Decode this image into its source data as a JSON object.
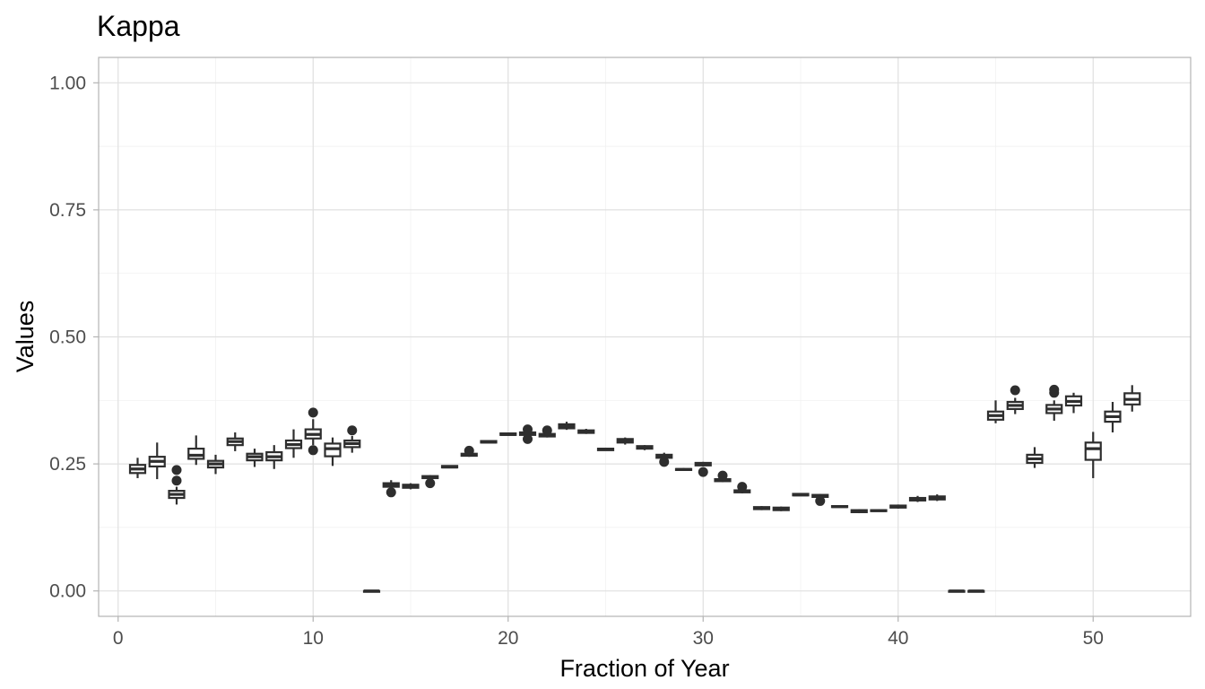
{
  "chart_data": {
    "type": "boxplot",
    "title": "Kappa",
    "xlabel": "Fraction of Year",
    "ylabel": "Values",
    "xlim": [
      -1,
      55
    ],
    "ylim": [
      -0.05,
      1.05
    ],
    "x_ticks": [
      0,
      10,
      20,
      30,
      40,
      50
    ],
    "x_tick_labels": [
      "0",
      "10",
      "20",
      "30",
      "40",
      "50"
    ],
    "y_ticks": [
      0,
      0.25,
      0.5,
      0.75,
      1.0
    ],
    "y_tick_labels": [
      "0.00",
      "0.25",
      "0.50",
      "0.75",
      "1.00"
    ],
    "grid": true,
    "boxes": [
      {
        "x": 1,
        "lo": 0.222,
        "q1": 0.232,
        "med": 0.24,
        "q3": 0.248,
        "hi": 0.262,
        "outliers": []
      },
      {
        "x": 2,
        "lo": 0.22,
        "q1": 0.245,
        "med": 0.255,
        "q3": 0.264,
        "hi": 0.292,
        "outliers": []
      },
      {
        "x": 3,
        "lo": 0.17,
        "q1": 0.183,
        "med": 0.19,
        "q3": 0.197,
        "hi": 0.205,
        "outliers": [
          0.217,
          0.238
        ]
      },
      {
        "x": 4,
        "lo": 0.248,
        "q1": 0.26,
        "med": 0.267,
        "q3": 0.28,
        "hi": 0.306,
        "outliers": []
      },
      {
        "x": 5,
        "lo": 0.23,
        "q1": 0.243,
        "med": 0.25,
        "q3": 0.256,
        "hi": 0.268,
        "outliers": []
      },
      {
        "x": 6,
        "lo": 0.275,
        "q1": 0.287,
        "med": 0.294,
        "q3": 0.3,
        "hi": 0.312,
        "outliers": []
      },
      {
        "x": 7,
        "lo": 0.244,
        "q1": 0.257,
        "med": 0.264,
        "q3": 0.27,
        "hi": 0.28,
        "outliers": []
      },
      {
        "x": 8,
        "lo": 0.24,
        "q1": 0.257,
        "med": 0.264,
        "q3": 0.273,
        "hi": 0.287,
        "outliers": []
      },
      {
        "x": 9,
        "lo": 0.262,
        "q1": 0.281,
        "med": 0.288,
        "q3": 0.296,
        "hi": 0.318,
        "outliers": []
      },
      {
        "x": 10,
        "lo": 0.287,
        "q1": 0.3,
        "med": 0.308,
        "q3": 0.318,
        "hi": 0.338,
        "outliers": [
          0.277,
          0.351
        ]
      },
      {
        "x": 11,
        "lo": 0.246,
        "q1": 0.265,
        "med": 0.28,
        "q3": 0.29,
        "hi": 0.302,
        "outliers": []
      },
      {
        "x": 12,
        "lo": 0.272,
        "q1": 0.283,
        "med": 0.29,
        "q3": 0.296,
        "hi": 0.305,
        "outliers": [
          0.316
        ]
      },
      {
        "x": 13,
        "lo": 0.0,
        "q1": 0.0,
        "med": 0.0,
        "q3": 0.0,
        "hi": 0.0,
        "outliers": []
      },
      {
        "x": 14,
        "lo": 0.202,
        "q1": 0.205,
        "med": 0.208,
        "q3": 0.212,
        "hi": 0.218,
        "outliers": [
          0.194
        ]
      },
      {
        "x": 15,
        "lo": 0.2,
        "q1": 0.203,
        "med": 0.206,
        "q3": 0.209,
        "hi": 0.212,
        "outliers": []
      },
      {
        "x": 16,
        "lo": 0.22,
        "q1": 0.222,
        "med": 0.224,
        "q3": 0.226,
        "hi": 0.228,
        "outliers": [
          0.212
        ]
      },
      {
        "x": 17,
        "lo": 0.242,
        "q1": 0.243,
        "med": 0.244,
        "q3": 0.246,
        "hi": 0.247,
        "outliers": []
      },
      {
        "x": 18,
        "lo": 0.264,
        "q1": 0.266,
        "med": 0.268,
        "q3": 0.27,
        "hi": 0.272,
        "outliers": [
          0.276
        ]
      },
      {
        "x": 19,
        "lo": 0.291,
        "q1": 0.292,
        "med": 0.293,
        "q3": 0.295,
        "hi": 0.296,
        "outliers": []
      },
      {
        "x": 20,
        "lo": 0.306,
        "q1": 0.307,
        "med": 0.308,
        "q3": 0.31,
        "hi": 0.311,
        "outliers": []
      },
      {
        "x": 21,
        "lo": 0.305,
        "q1": 0.307,
        "med": 0.309,
        "q3": 0.312,
        "hi": 0.314,
        "outliers": [
          0.299,
          0.318
        ]
      },
      {
        "x": 22,
        "lo": 0.302,
        "q1": 0.304,
        "med": 0.306,
        "q3": 0.309,
        "hi": 0.312,
        "outliers": [
          0.316
        ]
      },
      {
        "x": 23,
        "lo": 0.317,
        "q1": 0.32,
        "med": 0.324,
        "q3": 0.328,
        "hi": 0.333,
        "outliers": []
      },
      {
        "x": 24,
        "lo": 0.309,
        "q1": 0.311,
        "med": 0.313,
        "q3": 0.316,
        "hi": 0.319,
        "outliers": []
      },
      {
        "x": 25,
        "lo": 0.276,
        "q1": 0.277,
        "med": 0.279,
        "q3": 0.28,
        "hi": 0.282,
        "outliers": []
      },
      {
        "x": 26,
        "lo": 0.288,
        "q1": 0.292,
        "med": 0.296,
        "q3": 0.299,
        "hi": 0.302,
        "outliers": []
      },
      {
        "x": 27,
        "lo": 0.277,
        "q1": 0.28,
        "med": 0.283,
        "q3": 0.285,
        "hi": 0.287,
        "outliers": []
      },
      {
        "x": 28,
        "lo": 0.26,
        "q1": 0.262,
        "med": 0.265,
        "q3": 0.268,
        "hi": 0.272,
        "outliers": [
          0.254
        ]
      },
      {
        "x": 29,
        "lo": 0.237,
        "q1": 0.238,
        "med": 0.239,
        "q3": 0.24,
        "hi": 0.242,
        "outliers": []
      },
      {
        "x": 30,
        "lo": 0.245,
        "q1": 0.247,
        "med": 0.249,
        "q3": 0.252,
        "hi": 0.254,
        "outliers": [
          0.234
        ]
      },
      {
        "x": 31,
        "lo": 0.214,
        "q1": 0.216,
        "med": 0.218,
        "q3": 0.22,
        "hi": 0.222,
        "outliers": [
          0.227
        ]
      },
      {
        "x": 32,
        "lo": 0.192,
        "q1": 0.194,
        "med": 0.196,
        "q3": 0.198,
        "hi": 0.2,
        "outliers": [
          0.205
        ]
      },
      {
        "x": 33,
        "lo": 0.159,
        "q1": 0.161,
        "med": 0.163,
        "q3": 0.165,
        "hi": 0.167,
        "outliers": []
      },
      {
        "x": 34,
        "lo": 0.157,
        "q1": 0.159,
        "med": 0.161,
        "q3": 0.164,
        "hi": 0.166,
        "outliers": []
      },
      {
        "x": 35,
        "lo": 0.187,
        "q1": 0.188,
        "med": 0.189,
        "q3": 0.191,
        "hi": 0.192,
        "outliers": []
      },
      {
        "x": 36,
        "lo": 0.183,
        "q1": 0.185,
        "med": 0.187,
        "q3": 0.189,
        "hi": 0.191,
        "outliers": [
          0.177
        ]
      },
      {
        "x": 37,
        "lo": 0.164,
        "q1": 0.165,
        "med": 0.166,
        "q3": 0.167,
        "hi": 0.168,
        "outliers": []
      },
      {
        "x": 38,
        "lo": 0.153,
        "q1": 0.155,
        "med": 0.157,
        "q3": 0.159,
        "hi": 0.161,
        "outliers": []
      },
      {
        "x": 39,
        "lo": 0.156,
        "q1": 0.157,
        "med": 0.158,
        "q3": 0.159,
        "hi": 0.161,
        "outliers": []
      },
      {
        "x": 40,
        "lo": 0.162,
        "q1": 0.164,
        "med": 0.166,
        "q3": 0.168,
        "hi": 0.17,
        "outliers": []
      },
      {
        "x": 41,
        "lo": 0.175,
        "q1": 0.178,
        "med": 0.18,
        "q3": 0.183,
        "hi": 0.187,
        "outliers": []
      },
      {
        "x": 42,
        "lo": 0.177,
        "q1": 0.18,
        "med": 0.183,
        "q3": 0.186,
        "hi": 0.19,
        "outliers": []
      },
      {
        "x": 43,
        "lo": 0.0,
        "q1": 0.0,
        "med": 0.0,
        "q3": 0.0,
        "hi": 0.0,
        "outliers": []
      },
      {
        "x": 44,
        "lo": 0.0,
        "q1": 0.0,
        "med": 0.0,
        "q3": 0.0,
        "hi": 0.0,
        "outliers": []
      },
      {
        "x": 45,
        "lo": 0.33,
        "q1": 0.337,
        "med": 0.345,
        "q3": 0.353,
        "hi": 0.375,
        "outliers": []
      },
      {
        "x": 46,
        "lo": 0.348,
        "q1": 0.358,
        "med": 0.365,
        "q3": 0.372,
        "hi": 0.38,
        "outliers": [
          0.395
        ]
      },
      {
        "x": 47,
        "lo": 0.242,
        "q1": 0.252,
        "med": 0.26,
        "q3": 0.268,
        "hi": 0.283,
        "outliers": []
      },
      {
        "x": 48,
        "lo": 0.335,
        "q1": 0.35,
        "med": 0.358,
        "q3": 0.366,
        "hi": 0.375,
        "outliers": [
          0.39,
          0.396
        ]
      },
      {
        "x": 49,
        "lo": 0.35,
        "q1": 0.365,
        "med": 0.373,
        "q3": 0.383,
        "hi": 0.39,
        "outliers": []
      },
      {
        "x": 50,
        "lo": 0.222,
        "q1": 0.258,
        "med": 0.28,
        "q3": 0.292,
        "hi": 0.313,
        "outliers": []
      },
      {
        "x": 51,
        "lo": 0.312,
        "q1": 0.333,
        "med": 0.343,
        "q3": 0.353,
        "hi": 0.372,
        "outliers": []
      },
      {
        "x": 52,
        "lo": 0.353,
        "q1": 0.367,
        "med": 0.377,
        "q3": 0.389,
        "hi": 0.405,
        "outliers": []
      }
    ]
  }
}
